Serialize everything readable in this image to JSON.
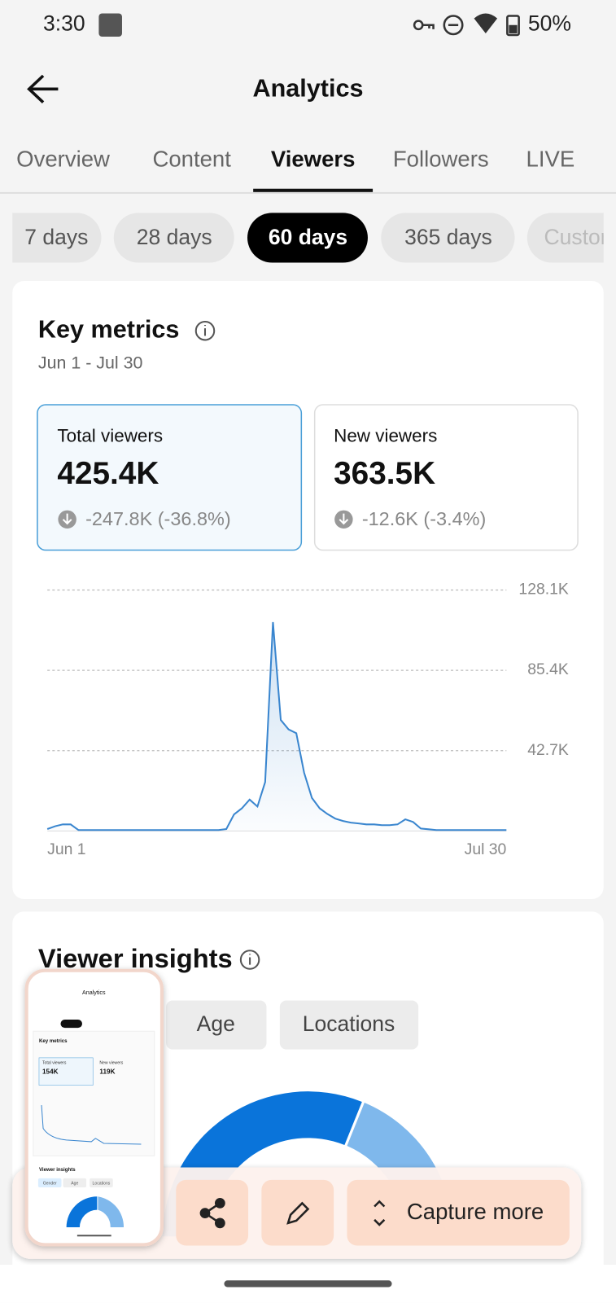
{
  "status_bar": {
    "time": "3:30",
    "battery": "50%"
  },
  "header": {
    "title": "Analytics"
  },
  "tabs": [
    "Overview",
    "Content",
    "Viewers",
    "Followers",
    "LIVE"
  ],
  "periods": [
    "7 days",
    "28 days",
    "60 days",
    "365 days",
    "Custom"
  ],
  "key_metrics": {
    "title": "Key metrics",
    "date_range": "Jun 1 - Jul 30",
    "cards": [
      {
        "label": "Total viewers",
        "value": "425.4K",
        "change": "-247.8K (-36.8%)"
      },
      {
        "label": "New viewers",
        "value": "363.5K",
        "change": "-12.6K (-3.4%)"
      }
    ]
  },
  "chart": {
    "type": "line",
    "color": "#3a86cf",
    "categories": [
      "Jun 1",
      null,
      null,
      null,
      null,
      null,
      null,
      null,
      null,
      null,
      null,
      null,
      null,
      null,
      null,
      null,
      null,
      null,
      null,
      null,
      null,
      null,
      null,
      null,
      null,
      null,
      null,
      null,
      null,
      null,
      null,
      null,
      null,
      null,
      null,
      null,
      null,
      null,
      null,
      null,
      null,
      null,
      null,
      null,
      null,
      null,
      null,
      null,
      null,
      null,
      null,
      null,
      null,
      null,
      null,
      null,
      null,
      null,
      null,
      "Jul 30"
    ],
    "values": [
      1000,
      2500,
      3500,
      3500,
      500,
      500,
      500,
      500,
      500,
      500,
      500,
      500,
      500,
      500,
      500,
      500,
      500,
      500,
      500,
      500,
      500,
      500,
      500,
      1000,
      8800,
      12000,
      16700,
      13000,
      26000,
      111000,
      59000,
      54000,
      52000,
      31000,
      17600,
      12000,
      9000,
      6600,
      5300,
      4400,
      4000,
      3500,
      3500,
      3100,
      3100,
      3500,
      6200,
      4800,
      1300,
      900,
      500,
      500,
      500,
      500,
      500,
      500,
      500,
      500,
      500,
      500
    ],
    "ylim": [
      0,
      128100
    ],
    "yticks": [
      {
        "value": 42700,
        "label": "42.7K"
      },
      {
        "value": 85400,
        "label": "85.4K"
      },
      {
        "value": 128100,
        "label": "128.1K"
      }
    ],
    "grid": true
  },
  "viewer_insights": {
    "title": "Viewer insights",
    "tabs": [
      "Age",
      "Locations"
    ]
  },
  "thumbnail": {
    "title": "Analytics",
    "section": "Key metrics",
    "cards": [
      {
        "label": "Total viewers",
        "value": "154K"
      },
      {
        "label": "New viewers",
        "value": "119K"
      }
    ],
    "insights": "Viewer insights",
    "tabs": [
      "Gender",
      "Age",
      "Locations"
    ]
  },
  "toolbar": {
    "capture_more": "Capture more"
  }
}
